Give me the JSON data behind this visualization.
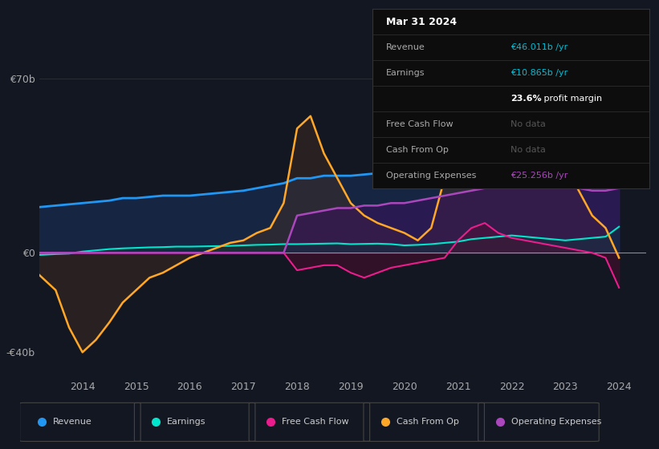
{
  "bg_color": "#131722",
  "plot_bg_color": "#131722",
  "colors": {
    "revenue": "#2196f3",
    "earnings": "#00e5cc",
    "free_cash_flow": "#e91e8c",
    "cash_from_op": "#ffa726",
    "operating_expenses": "#ab47bc"
  },
  "legend_items": [
    {
      "label": "Revenue",
      "color": "#2196f3"
    },
    {
      "label": "Earnings",
      "color": "#00e5cc"
    },
    {
      "label": "Free Cash Flow",
      "color": "#e91e8c"
    },
    {
      "label": "Cash From Op",
      "color": "#ffa726"
    },
    {
      "label": "Operating Expenses",
      "color": "#ab47bc"
    }
  ],
  "series": {
    "x": [
      2013.0,
      2013.25,
      2013.5,
      2013.75,
      2014.0,
      2014.25,
      2014.5,
      2014.75,
      2015.0,
      2015.25,
      2015.5,
      2015.75,
      2016.0,
      2016.25,
      2016.5,
      2016.75,
      2017.0,
      2017.25,
      2017.5,
      2017.75,
      2018.0,
      2018.25,
      2018.5,
      2018.75,
      2019.0,
      2019.25,
      2019.5,
      2019.75,
      2020.0,
      2020.25,
      2020.5,
      2020.75,
      2021.0,
      2021.25,
      2021.5,
      2021.75,
      2022.0,
      2022.25,
      2022.5,
      2022.75,
      2023.0,
      2023.25,
      2023.5,
      2023.75,
      2024.0
    ],
    "revenue": [
      18,
      18.5,
      19,
      19.5,
      20,
      20.5,
      21,
      22,
      22,
      22.5,
      23,
      23,
      23,
      23.5,
      24,
      24.5,
      25,
      26,
      27,
      28,
      30,
      30,
      31,
      31,
      31,
      31.5,
      32,
      32.5,
      33,
      34,
      35,
      37,
      38,
      40,
      41,
      42,
      43,
      43,
      42,
      42.5,
      43,
      43.5,
      44,
      45,
      46
    ],
    "earnings": [
      -1,
      -0.8,
      -0.5,
      -0.3,
      0.5,
      1.0,
      1.5,
      1.8,
      2.0,
      2.2,
      2.3,
      2.5,
      2.5,
      2.6,
      2.7,
      2.8,
      3.0,
      3.2,
      3.3,
      3.5,
      3.5,
      3.6,
      3.7,
      3.8,
      3.5,
      3.6,
      3.7,
      3.5,
      3.0,
      3.2,
      3.5,
      4.0,
      4.5,
      5.5,
      6.0,
      6.5,
      7.0,
      6.5,
      6.0,
      5.5,
      5.0,
      5.5,
      6.0,
      6.5,
      10.5
    ],
    "free_cash_flow": [
      0,
      0,
      0,
      0,
      0,
      0,
      0,
      0,
      0,
      0,
      0,
      0,
      0,
      0,
      0,
      0,
      0,
      0,
      0,
      0,
      -7,
      -6,
      -5,
      -5,
      -8,
      -10,
      -8,
      -6,
      -5,
      -4,
      -3,
      -2,
      5,
      10,
      12,
      8,
      6,
      5,
      4,
      3,
      2,
      1,
      0,
      -2,
      -14
    ],
    "cash_from_op": [
      -5,
      -10,
      -15,
      -30,
      -40,
      -35,
      -28,
      -20,
      -15,
      -10,
      -8,
      -5,
      -2,
      0,
      2,
      4,
      5,
      8,
      10,
      20,
      50,
      55,
      40,
      30,
      20,
      15,
      12,
      10,
      8,
      5,
      10,
      30,
      55,
      60,
      55,
      50,
      55,
      50,
      45,
      40,
      35,
      25,
      15,
      10,
      -2
    ],
    "operating_expenses": [
      0,
      0,
      0,
      0,
      0,
      0,
      0,
      0,
      0,
      0,
      0,
      0,
      0,
      0,
      0,
      0,
      0,
      0,
      0,
      0,
      15,
      16,
      17,
      18,
      18,
      19,
      19,
      20,
      20,
      21,
      22,
      23,
      24,
      25,
      26,
      27,
      27,
      27,
      26,
      26,
      26,
      26,
      25,
      25,
      26
    ]
  },
  "info_box": {
    "date": "Mar 31 2024",
    "rows": [
      {
        "label": "Revenue",
        "value": "€46.011b /yr",
        "value_color": "#00bcd4"
      },
      {
        "label": "Earnings",
        "value": "€10.865b /yr",
        "value_color": "#00bcd4"
      },
      {
        "label": "",
        "value": "23.6% profit margin",
        "value_color": "#ffffff"
      },
      {
        "label": "Free Cash Flow",
        "value": "No data",
        "value_color": "#555555"
      },
      {
        "label": "Cash From Op",
        "value": "No data",
        "value_color": "#555555"
      },
      {
        "label": "Operating Expenses",
        "value": "€25.256b /yr",
        "value_color": "#ab47bc"
      }
    ]
  }
}
